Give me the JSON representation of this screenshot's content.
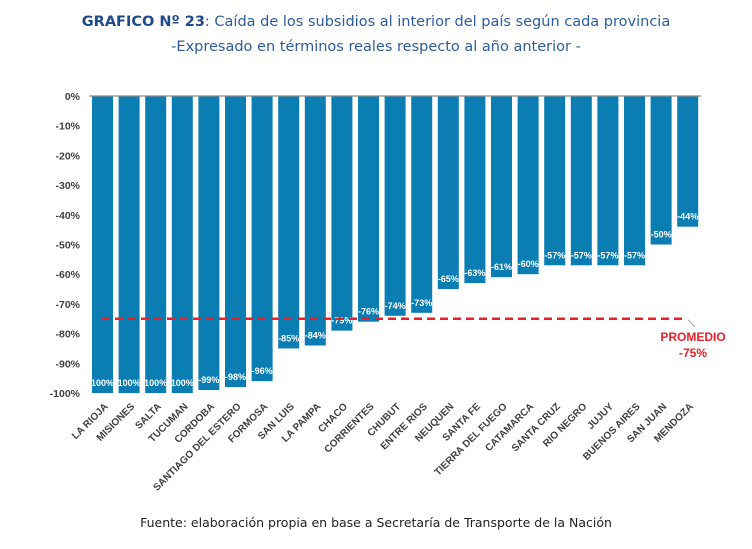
{
  "header": {
    "title_bold": "GRAFICO Nº 23",
    "title_rest": ": Caída de los subsidios al interior del país según cada provincia",
    "subtitle": "-Expresado en términos reales respecto al año anterior -"
  },
  "footer": {
    "source": "Fuente: elaboración propia en base a Secretaría de Transporte de la Nación"
  },
  "colors": {
    "bar": "#0a7db3",
    "average_line": "#e8202a",
    "title": "#2c5c9e"
  },
  "chart_data": {
    "type": "bar",
    "title": "GRAFICO Nº 23: Caída de los subsidios al interior del país según cada provincia",
    "subtitle": "-Expresado en términos reales respecto al año anterior -",
    "xlabel": "",
    "ylabel": "",
    "ylim": [
      -100,
      0
    ],
    "yticks": [
      0,
      -10,
      -20,
      -30,
      -40,
      -50,
      -60,
      -70,
      -80,
      -90,
      -100
    ],
    "ytick_labels": [
      "0%",
      "-10%",
      "-20%",
      "-30%",
      "-40%",
      "-50%",
      "-60%",
      "-70%",
      "-80%",
      "-90%",
      "-100%"
    ],
    "grid": false,
    "legend": null,
    "categories": [
      "LA RIOJA",
      "MISIONES",
      "SALTA",
      "TUCUMAN",
      "CORDOBA",
      "SANTIAGO DEL ESTERO",
      "FORMOSA",
      "SAN LUIS",
      "LA PAMPA",
      "CHACO",
      "CORRIENTES",
      "CHUBUT",
      "ENTRE RIOS",
      "NEUQUEN",
      "SANTA FE",
      "TIERRA DEL FUEGO",
      "CATAMARCA",
      "SANTA CRUZ",
      "RIO NEGRO",
      "JUJUY",
      "BUENOS AIRES",
      "SAN JUAN",
      "MENDOZA"
    ],
    "values": [
      -100,
      -100,
      -100,
      -100,
      -99,
      -98,
      -96,
      -85,
      -84,
      -79,
      -76,
      -74,
      -73,
      -65,
      -63,
      -61,
      -60,
      -57,
      -57,
      -57,
      -57,
      -50,
      -44
    ],
    "data_labels": [
      "100%",
      "100%",
      "100%",
      "100%",
      "-99%",
      "-98%",
      "-96%",
      "-85%",
      "-84%",
      "-79%",
      "-76%",
      "-74%",
      "-73%",
      "-65%",
      "-63%",
      "-61%",
      "-60%",
      "-57%",
      "-57%",
      "-57%",
      "-57%",
      "-50%",
      "-44%"
    ],
    "average": {
      "value": -75,
      "label_line1": "PROMEDIO",
      "label_line2": "-75%",
      "style": "dashed"
    }
  }
}
